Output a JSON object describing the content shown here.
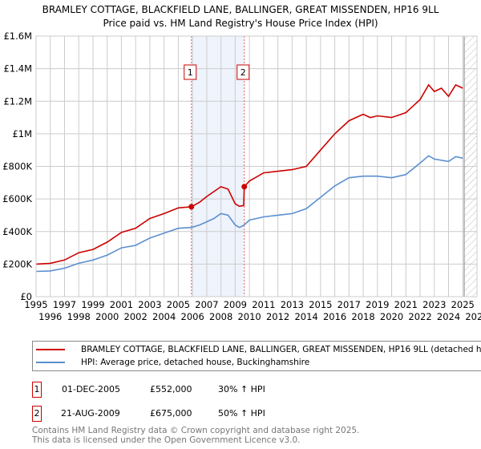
{
  "title": {
    "line1": "BRAMLEY COTTAGE, BLACKFIELD LANE, BALLINGER, GREAT MISSENDEN, HP16 9LL",
    "line2": "Price paid vs. HM Land Registry's House Price Index (HPI)"
  },
  "chart_data": {
    "type": "line",
    "xlim": [
      1995,
      2026
    ],
    "ylim": [
      0,
      1600000
    ],
    "yticks": [
      {
        "v": 0,
        "label": "£0"
      },
      {
        "v": 200000,
        "label": "£200K"
      },
      {
        "v": 400000,
        "label": "£400K"
      },
      {
        "v": 600000,
        "label": "£600K"
      },
      {
        "v": 800000,
        "label": "£800K"
      },
      {
        "v": 1000000,
        "label": "£1M"
      },
      {
        "v": 1200000,
        "label": "£1.2M"
      },
      {
        "v": 1400000,
        "label": "£1.4M"
      },
      {
        "v": 1600000,
        "label": "£1.6M"
      }
    ],
    "xticks": [
      "1995",
      "1996",
      "1997",
      "1998",
      "1999",
      "2000",
      "2001",
      "2002",
      "2003",
      "2004",
      "2005",
      "2006",
      "2007",
      "2008",
      "2009",
      "2010",
      "2011",
      "2012",
      "2013",
      "2014",
      "2015",
      "2016",
      "2017",
      "2018",
      "2019",
      "2020",
      "2021",
      "2022",
      "2023",
      "2024",
      "2025",
      "2026"
    ],
    "grid": true,
    "shaded_period": [
      2005.92,
      2009.64
    ],
    "forecast_hatch_from": 2025.1,
    "series": [
      {
        "name": "BRAMLEY COTTAGE, BLACKFIELD LANE, BALLINGER, GREAT MISSENDEN, HP16 9LL (detached house)",
        "color": "#cc0000",
        "x": [
          1995,
          1996,
          1997,
          1998,
          1999,
          2000,
          2001,
          2002,
          2003,
          2004,
          2005,
          2005.92,
          2006.5,
          2007,
          2008,
          2008.5,
          2009,
          2009.3,
          2009.6,
          2009.64,
          2010,
          2011,
          2012,
          2013,
          2014,
          2015,
          2016,
          2017,
          2018,
          2018.5,
          2019,
          2020,
          2021,
          2022,
          2022.6,
          2023,
          2023.5,
          2024,
          2024.5,
          2025
        ],
        "y": [
          200000,
          205000,
          225000,
          270000,
          290000,
          335000,
          395000,
          420000,
          480000,
          510000,
          545000,
          552000,
          580000,
          615000,
          675000,
          660000,
          570000,
          555000,
          560000,
          675000,
          710000,
          760000,
          770000,
          780000,
          800000,
          900000,
          1000000,
          1080000,
          1120000,
          1100000,
          1110000,
          1100000,
          1130000,
          1210000,
          1300000,
          1260000,
          1280000,
          1230000,
          1300000,
          1280000
        ]
      },
      {
        "name": "HPI: Average price, detached house, Buckinghamshire",
        "color": "#5b8fd0",
        "x": [
          1995,
          1996,
          1997,
          1998,
          1999,
          2000,
          2001,
          2002,
          2003,
          2004,
          2005,
          2005.92,
          2006.5,
          2007,
          2007.5,
          2008,
          2008.5,
          2009,
          2009.3,
          2009.64,
          2010,
          2011,
          2012,
          2013,
          2014,
          2015,
          2016,
          2017,
          2018,
          2019,
          2020,
          2021,
          2022,
          2022.6,
          2023,
          2024,
          2024.5,
          2025
        ],
        "y": [
          155000,
          158000,
          175000,
          205000,
          225000,
          255000,
          300000,
          315000,
          360000,
          390000,
          420000,
          425000,
          440000,
          460000,
          480000,
          510000,
          500000,
          440000,
          425000,
          440000,
          470000,
          490000,
          500000,
          510000,
          540000,
          610000,
          680000,
          730000,
          740000,
          740000,
          730000,
          750000,
          820000,
          865000,
          845000,
          830000,
          860000,
          850000
        ]
      }
    ],
    "sales": [
      {
        "label": "1",
        "x": 2005.92,
        "y": 552000
      },
      {
        "label": "2",
        "x": 2009.64,
        "y": 675000
      }
    ]
  },
  "legend": {
    "red": "BRAMLEY COTTAGE, BLACKFIELD LANE, BALLINGER, GREAT MISSENDEN, HP16 9LL (detached house)",
    "blue": "HPI: Average price, detached house, Buckinghamshire"
  },
  "transactions": [
    {
      "num": "1",
      "date": "01-DEC-2005",
      "price": "£552,000",
      "hpi": "30% ↑ HPI"
    },
    {
      "num": "2",
      "date": "21-AUG-2009",
      "price": "£675,000",
      "hpi": "50% ↑ HPI"
    }
  ],
  "footer": {
    "line1": "Contains HM Land Registry data © Crown copyright and database right 2025.",
    "line2": "This data is licensed under the Open Government Licence v3.0."
  }
}
